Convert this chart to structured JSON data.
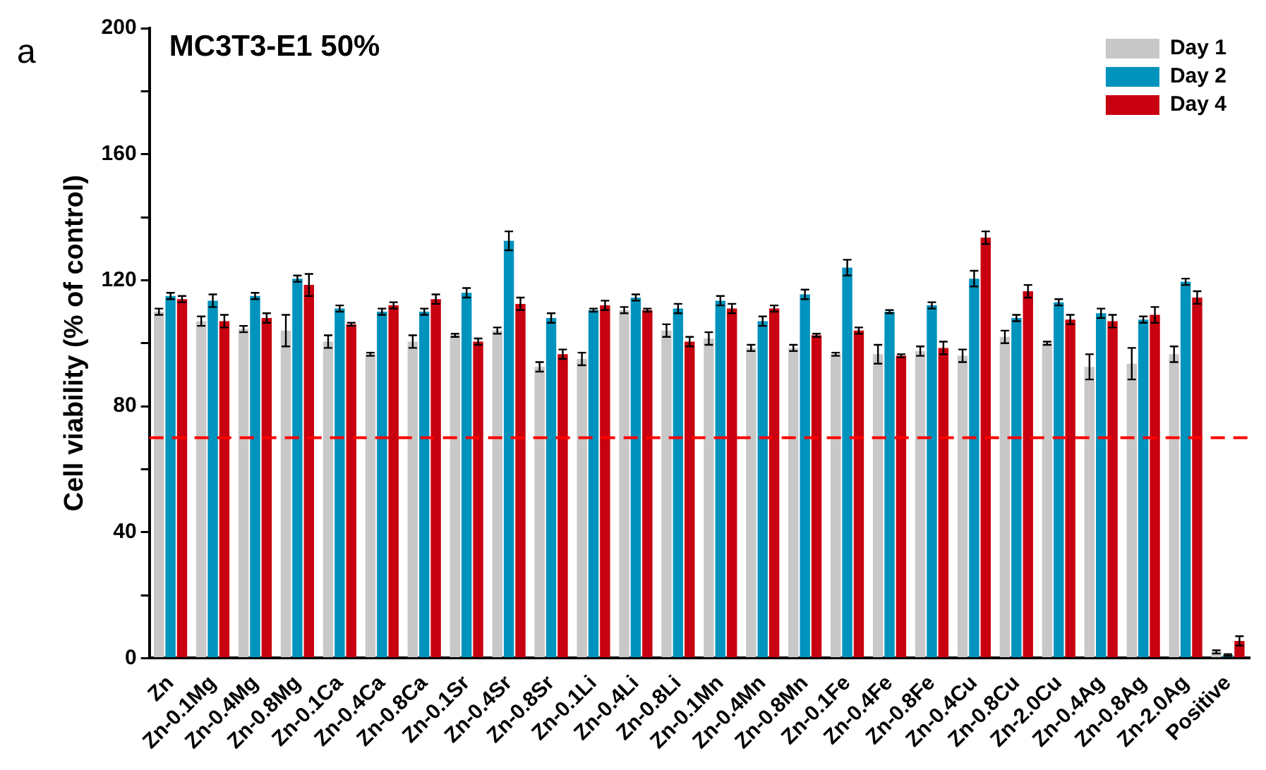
{
  "chart_data": {
    "type": "bar",
    "title": "MC3T3-E1 50%",
    "ylabel": "Cell viability (% of control)",
    "annotations": [
      "a"
    ],
    "categories": [
      "Zn",
      "Zn-0.1Mg",
      "Zn-0.4Mg",
      "Zn-0.8Mg",
      "Zn-0.1Ca",
      "Zn-0.4Ca",
      "Zn-0.8Ca",
      "Zn-0.1Sr",
      "Zn-0.4Sr",
      "Zn-0.8Sr",
      "Zn-0.1Li",
      "Zn-0.4Li",
      "Zn-0.8Li",
      "Zn-0.1Mn",
      "Zn-0.4Mn",
      "Zn-0.8Mn",
      "Zn-0.1Fe",
      "Zn-0.4Fe",
      "Zn-0.8Fe",
      "Zn-0.4Cu",
      "Zn-0.8Cu",
      "Zn-2.0Cu",
      "Zn-0.4Ag",
      "Zn-0.8Ag",
      "Zn-2.0Ag",
      "Positive"
    ],
    "series": [
      {
        "name": "Day 1",
        "color": "#c8c8c8",
        "values": [
          110,
          107,
          104.5,
          104,
          100.5,
          96.5,
          100.5,
          102.5,
          104,
          92.5,
          95,
          110.5,
          104,
          101.5,
          98.5,
          98.5,
          96.5,
          96.5,
          97.5,
          96,
          102,
          100,
          92.5,
          93.5,
          96.5,
          2
        ],
        "errors": [
          1,
          1.5,
          1,
          5,
          2,
          0.5,
          2,
          0.5,
          1,
          1.5,
          2,
          1,
          2,
          2,
          1,
          1,
          0.5,
          3,
          1.5,
          2,
          2,
          0.5,
          4,
          5,
          2.5,
          0.5
        ]
      },
      {
        "name": "Day 2",
        "color": "#0093bd",
        "values": [
          115,
          113.5,
          115,
          120.5,
          111,
          110,
          110,
          116,
          132.5,
          108,
          110.5,
          114.5,
          111,
          113.5,
          107,
          115.5,
          124,
          110,
          112,
          120.5,
          108,
          113,
          109.5,
          107.5,
          119.5,
          1
        ],
        "errors": [
          1,
          2,
          1,
          1,
          1,
          1,
          1,
          1.5,
          3,
          1.5,
          0.5,
          1,
          1.5,
          1.5,
          1.5,
          1.5,
          2.5,
          0.5,
          1,
          2.5,
          1,
          1,
          1.5,
          1,
          1,
          0.3
        ]
      },
      {
        "name": "Day 4",
        "color": "#c8000f",
        "values": [
          114,
          107,
          108,
          118.5,
          106,
          112,
          114,
          100.5,
          112.5,
          96.5,
          112,
          110.5,
          100.5,
          111,
          111,
          102.5,
          104,
          96,
          98.5,
          133.5,
          116.5,
          107.5,
          107,
          109,
          114.5,
          5.5
        ],
        "errors": [
          1,
          2,
          1.5,
          3.5,
          0.5,
          1,
          1.5,
          1,
          2,
          1.5,
          1.5,
          0.5,
          1.5,
          1.5,
          1,
          0.5,
          1,
          0.5,
          2,
          2,
          2,
          1.5,
          2,
          2.5,
          2,
          1.5
        ]
      }
    ],
    "ylim": [
      0,
      200
    ],
    "yticks": [
      0,
      {
        "value": 20,
        "label": null
      },
      40,
      {
        "value": 60,
        "label": null
      },
      80,
      {
        "value": 100,
        "label": null
      },
      120,
      {
        "value": 140,
        "label": null
      },
      160,
      {
        "value": 180,
        "label": null
      },
      200
    ],
    "ref_lines": [
      {
        "axis": "y",
        "value": 70,
        "color": "#ff0000",
        "line_style": "dashed"
      }
    ],
    "legend": "top right",
    "grid": false
  }
}
